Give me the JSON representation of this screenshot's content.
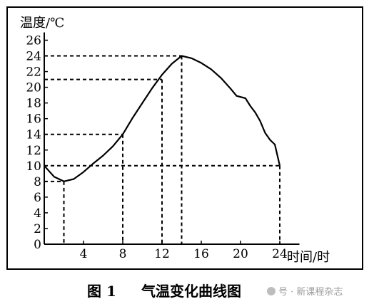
{
  "chart_data": {
    "type": "line",
    "ylabel": "温度/℃",
    "xlabel": "时间/时",
    "xlim": [
      0,
      26
    ],
    "ylim": [
      0,
      27
    ],
    "x_ticks": [
      4,
      8,
      12,
      16,
      20,
      24
    ],
    "y_ticks": [
      0,
      2,
      4,
      6,
      8,
      10,
      12,
      14,
      16,
      18,
      20,
      22,
      24,
      26
    ],
    "grid": false,
    "series": [
      {
        "color": "#000000",
        "points": [
          [
            0,
            10
          ],
          [
            1,
            8.6
          ],
          [
            2,
            8
          ],
          [
            3,
            8.3
          ],
          [
            4,
            9.2
          ],
          [
            5,
            10.3
          ],
          [
            6,
            11.3
          ],
          [
            7,
            12.5
          ],
          [
            8,
            14
          ],
          [
            9,
            16.1
          ],
          [
            10,
            18
          ],
          [
            11,
            19.9
          ],
          [
            12,
            21.6
          ],
          [
            13,
            23
          ],
          [
            14,
            24
          ],
          [
            15,
            23.7
          ],
          [
            16,
            23.1
          ],
          [
            17,
            22.3
          ],
          [
            18,
            21.2
          ],
          [
            19,
            19.8
          ],
          [
            19.6,
            18.9
          ],
          [
            20.5,
            18.6
          ],
          [
            21,
            17.6
          ],
          [
            21.5,
            16.8
          ],
          [
            22,
            15.7
          ],
          [
            22.5,
            14.2
          ],
          [
            23,
            13.3
          ],
          [
            23.5,
            12.7
          ],
          [
            24,
            10
          ]
        ]
      }
    ],
    "reference_lines": [
      {
        "x": 2,
        "y": 8
      },
      {
        "x": 8,
        "y": 14
      },
      {
        "x": 12,
        "y": 21
      },
      {
        "x": 14,
        "y": 24
      },
      {
        "x": 24,
        "y": 10
      }
    ]
  },
  "caption": {
    "figure_number": "图 1",
    "title": "气温变化曲线图"
  },
  "watermark": "号 · 新课程杂志",
  "colors": {
    "line": "#000000",
    "background": "#ffffff",
    "frame": "#000000",
    "watermark": "#9a9a9a"
  }
}
